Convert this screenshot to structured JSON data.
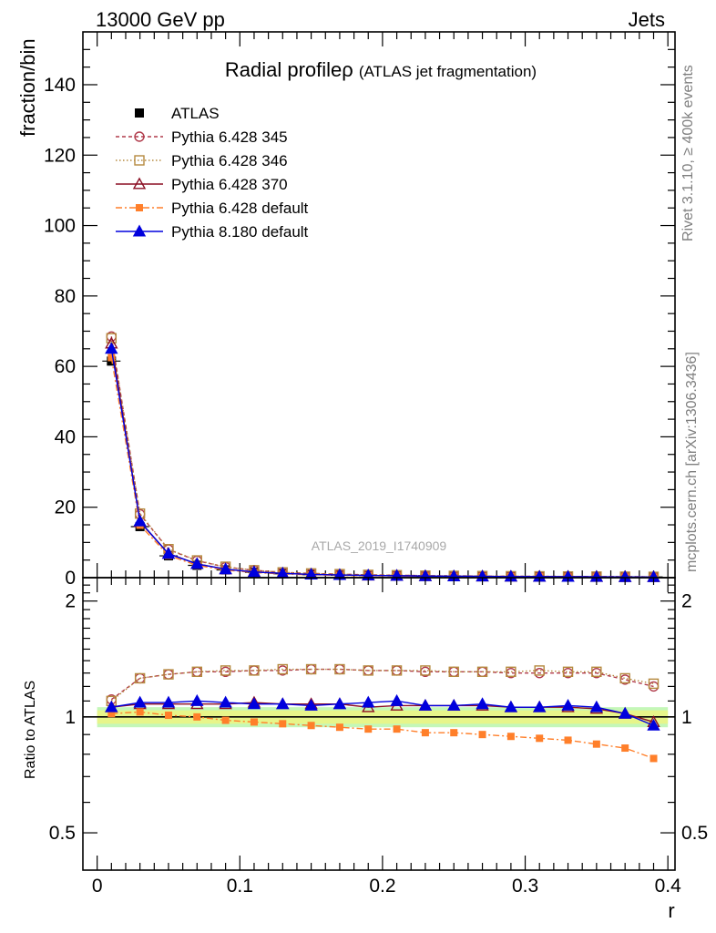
{
  "header": {
    "left": "13000 GeV pp",
    "right": "Jets"
  },
  "side_texts": {
    "top": "Rivet 3.1.10, ≥ 400k events",
    "bottom": "mcplots.cern.ch [arXiv:1306.3436]"
  },
  "colors": {
    "ATLAS": "#000000",
    "Pythia 6.428 345": "#b03a4a",
    "Pythia 6.428 346": "#b5893e",
    "Pythia 6.428 370": "#8b0f24",
    "Pythia 6.428 default": "#ff7f2a",
    "Pythia 8.180 default": "#0000dd",
    "band_inner": "#e7f58a",
    "band_outer": "#c4f7b8"
  },
  "chart_data": [
    {
      "type": "scatter",
      "id": "main",
      "title_main": "Radial profile",
      "title_symbol": "ρ",
      "title_sub": "(ATLAS jet fragmentation)",
      "ylabel": "fraction/bin",
      "watermark": "ATLAS_2019_I1740909",
      "xlim": [
        -0.01,
        0.405
      ],
      "ylim": [
        0,
        155
      ],
      "yticks": [
        0,
        20,
        40,
        60,
        80,
        100,
        120,
        140
      ],
      "x": [
        0.01,
        0.03,
        0.05,
        0.07,
        0.09,
        0.11,
        0.13,
        0.15,
        0.17,
        0.19,
        0.21,
        0.23,
        0.25,
        0.27,
        0.29,
        0.31,
        0.33,
        0.35,
        0.37,
        0.39
      ],
      "series": [
        {
          "name": "ATLAS",
          "values": [
            61.5,
            14.5,
            6.2,
            3.5,
            2.2,
            1.5,
            1.1,
            0.85,
            0.7,
            0.58,
            0.5,
            0.42,
            0.37,
            0.33,
            0.3,
            0.27,
            0.25,
            0.23,
            0.21,
            0.19
          ]
        },
        {
          "name": "Pythia 6.428 345",
          "values": [
            68.5,
            18.0,
            8.0,
            4.8,
            3.0,
            2.1,
            1.5,
            1.2,
            1.0,
            0.8,
            0.7,
            0.58,
            0.51,
            0.46,
            0.41,
            0.37,
            0.34,
            0.31,
            0.28,
            0.24
          ]
        },
        {
          "name": "Pythia 6.428 346",
          "values": [
            68.0,
            18.2,
            8.1,
            4.9,
            3.1,
            2.1,
            1.5,
            1.2,
            1.0,
            0.8,
            0.7,
            0.58,
            0.51,
            0.46,
            0.41,
            0.38,
            0.34,
            0.31,
            0.28,
            0.24
          ]
        },
        {
          "name": "Pythia 6.428 370",
          "values": [
            66.5,
            15.8,
            6.8,
            3.9,
            2.4,
            1.65,
            1.2,
            0.93,
            0.77,
            0.63,
            0.55,
            0.46,
            0.4,
            0.36,
            0.32,
            0.29,
            0.27,
            0.24,
            0.21,
            0.18
          ]
        },
        {
          "name": "Pythia 6.428 default",
          "values": [
            62.5,
            14.9,
            6.3,
            3.5,
            2.15,
            1.45,
            1.05,
            0.8,
            0.66,
            0.54,
            0.47,
            0.38,
            0.34,
            0.3,
            0.27,
            0.24,
            0.22,
            0.19,
            0.17,
            0.15
          ]
        },
        {
          "name": "Pythia 8.180 default",
          "values": [
            65.0,
            16.0,
            6.8,
            3.9,
            2.4,
            1.6,
            1.2,
            0.92,
            0.77,
            0.64,
            0.56,
            0.45,
            0.4,
            0.36,
            0.32,
            0.29,
            0.27,
            0.25,
            0.21,
            0.18
          ]
        }
      ]
    },
    {
      "type": "scatter",
      "id": "ratio",
      "ylabel": "Ratio to ATLAS",
      "xlabel": "r",
      "scale": "log",
      "xlim": [
        -0.01,
        0.405
      ],
      "ylim": [
        0.4,
        2.3
      ],
      "yticks": [
        0.5,
        1,
        2
      ],
      "xticks": [
        0,
        0.1,
        0.2,
        0.3,
        0.4
      ],
      "xticklabels": [
        "0",
        "0.1",
        "0.2",
        "0.3",
        "0.4"
      ],
      "x": [
        0.01,
        0.03,
        0.05,
        0.07,
        0.09,
        0.11,
        0.13,
        0.15,
        0.17,
        0.19,
        0.21,
        0.23,
        0.25,
        0.27,
        0.29,
        0.31,
        0.33,
        0.35,
        0.37,
        0.39
      ],
      "band_inner": [
        0.96,
        1.04
      ],
      "band_outer": [
        0.94,
        1.06
      ],
      "series": [
        {
          "name": "Pythia 6.428 345",
          "values": [
            1.11,
            1.26,
            1.29,
            1.31,
            1.31,
            1.32,
            1.32,
            1.33,
            1.33,
            1.32,
            1.32,
            1.31,
            1.31,
            1.31,
            1.3,
            1.3,
            1.3,
            1.3,
            1.25,
            1.2
          ]
        },
        {
          "name": "Pythia 6.428 346",
          "values": [
            1.1,
            1.26,
            1.29,
            1.31,
            1.32,
            1.32,
            1.33,
            1.33,
            1.33,
            1.32,
            1.32,
            1.32,
            1.31,
            1.31,
            1.31,
            1.32,
            1.31,
            1.31,
            1.26,
            1.22
          ]
        },
        {
          "name": "Pythia 6.428 370",
          "values": [
            1.06,
            1.08,
            1.08,
            1.08,
            1.08,
            1.09,
            1.08,
            1.08,
            1.08,
            1.06,
            1.07,
            1.07,
            1.07,
            1.07,
            1.06,
            1.06,
            1.06,
            1.05,
            1.02,
            0.97
          ]
        },
        {
          "name": "Pythia 6.428 default",
          "values": [
            1.02,
            1.03,
            1.01,
            1.0,
            0.98,
            0.97,
            0.96,
            0.95,
            0.94,
            0.93,
            0.93,
            0.91,
            0.91,
            0.9,
            0.89,
            0.88,
            0.87,
            0.85,
            0.83,
            0.78
          ]
        },
        {
          "name": "Pythia 8.180 default",
          "values": [
            1.06,
            1.09,
            1.09,
            1.1,
            1.09,
            1.08,
            1.08,
            1.07,
            1.08,
            1.09,
            1.1,
            1.07,
            1.07,
            1.08,
            1.06,
            1.06,
            1.07,
            1.06,
            1.02,
            0.95
          ]
        }
      ]
    }
  ]
}
